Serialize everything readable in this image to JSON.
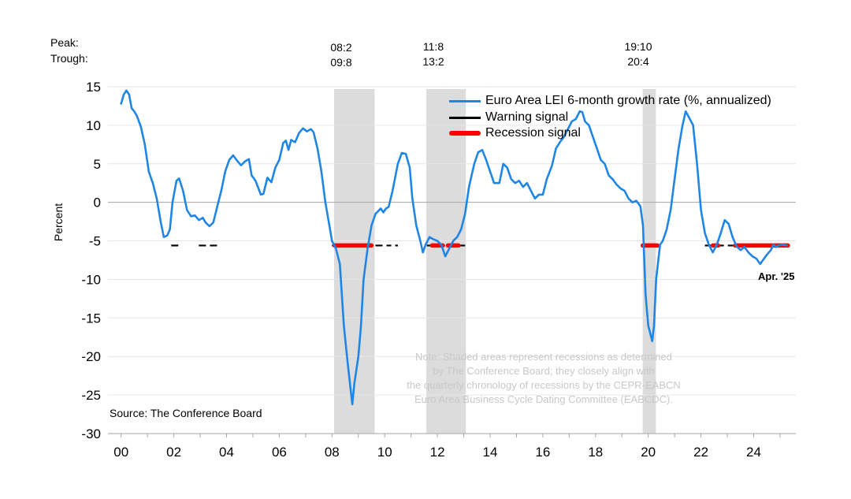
{
  "header": {
    "peak_label": "Peak:",
    "trough_label": "Trough:"
  },
  "recession_dates": [
    {
      "peak": "08:2",
      "trough": "09:8"
    },
    {
      "peak": "11:8",
      "trough": "13:2"
    },
    {
      "peak": "19:10",
      "trough": "20:4"
    }
  ],
  "legend": [
    {
      "label": "Euro Area LEI 6-month growth rate (%, annualized)",
      "color": "#1f86e6",
      "style": "line"
    },
    {
      "label": "Warning signal",
      "color": "#000000",
      "style": "dash"
    },
    {
      "label": "Recession signal",
      "color": "#ff0000",
      "style": "thick"
    }
  ],
  "note": [
    "Note: Shaded areas represent recessions as determined",
    "by The Conference Board; they closely align with",
    "the quarterly chronology of recessions by the CEPR-EABCN",
    "Euro Area Business Cycle Dating Committee (EABCDC)."
  ],
  "source": "Source: The Conference Board",
  "end_label": "Apr. '25",
  "chart_data": {
    "type": "line",
    "ylabel": "Percent",
    "ylim": [
      -30,
      15
    ],
    "yticks": [
      15,
      10,
      5,
      0,
      -5,
      -10,
      -15,
      -20,
      -25,
      -30
    ],
    "xlim": [
      1999.5,
      2025.6
    ],
    "xticks": [
      {
        "label": "00",
        "value": 2000
      },
      {
        "label": "02",
        "value": 2002
      },
      {
        "label": "04",
        "value": 2004
      },
      {
        "label": "06",
        "value": 2006
      },
      {
        "label": "08",
        "value": 2008
      },
      {
        "label": "10",
        "value": 2010
      },
      {
        "label": "12",
        "value": 2012
      },
      {
        "label": "14",
        "value": 2014
      },
      {
        "label": "16",
        "value": 2016
      },
      {
        "label": "18",
        "value": 2018
      },
      {
        "label": "20",
        "value": 2020
      },
      {
        "label": "22",
        "value": 2022
      },
      {
        "label": "24",
        "value": 2024
      }
    ],
    "recessions": [
      [
        2008.08,
        2009.62
      ],
      [
        2011.58,
        2013.08
      ],
      [
        2019.79,
        2020.29
      ]
    ],
    "signal_level": -5.6,
    "warning_segments": [
      [
        2001.9,
        2002.2
      ],
      [
        2002.95,
        2003.7
      ],
      [
        2008.0,
        2009.5
      ],
      [
        2009.65,
        2010.25
      ],
      [
        2010.4,
        2010.5
      ],
      [
        2011.6,
        2013.05
      ],
      [
        2019.79,
        2020.35
      ],
      [
        2022.15,
        2022.5
      ],
      [
        2022.6,
        2023.25
      ],
      [
        2023.3,
        2025.3
      ]
    ],
    "recession_segments": [
      [
        2008.1,
        2009.5
      ],
      [
        2011.8,
        2012.2
      ],
      [
        2012.4,
        2012.8
      ],
      [
        2019.79,
        2020.35
      ],
      [
        2022.45,
        2022.65
      ],
      [
        2023.3,
        2025.3
      ]
    ],
    "series": [
      {
        "name": "Euro Area LEI 6-month growth rate (%, annualized)",
        "points": [
          [
            2000.0,
            12.8
          ],
          [
            2000.1,
            14.0
          ],
          [
            2000.2,
            14.5
          ],
          [
            2000.3,
            14.0
          ],
          [
            2000.4,
            12.2
          ],
          [
            2000.5,
            11.8
          ],
          [
            2000.6,
            11.2
          ],
          [
            2000.75,
            9.8
          ],
          [
            2000.9,
            7.5
          ],
          [
            2001.05,
            4.0
          ],
          [
            2001.2,
            2.5
          ],
          [
            2001.35,
            0.5
          ],
          [
            2001.5,
            -2.5
          ],
          [
            2001.62,
            -4.5
          ],
          [
            2001.75,
            -4.3
          ],
          [
            2001.85,
            -3.5
          ],
          [
            2001.95,
            0.0
          ],
          [
            2002.1,
            2.8
          ],
          [
            2002.2,
            3.1
          ],
          [
            2002.35,
            1.5
          ],
          [
            2002.5,
            -1.0
          ],
          [
            2002.65,
            -1.8
          ],
          [
            2002.8,
            -1.7
          ],
          [
            2002.95,
            -2.3
          ],
          [
            2003.1,
            -2.0
          ],
          [
            2003.2,
            -2.6
          ],
          [
            2003.35,
            -3.1
          ],
          [
            2003.5,
            -2.6
          ],
          [
            2003.65,
            -0.5
          ],
          [
            2003.8,
            1.5
          ],
          [
            2003.95,
            4.0
          ],
          [
            2004.1,
            5.5
          ],
          [
            2004.25,
            6.1
          ],
          [
            2004.4,
            5.4
          ],
          [
            2004.55,
            4.8
          ],
          [
            2004.7,
            5.3
          ],
          [
            2004.85,
            5.6
          ],
          [
            2004.95,
            3.5
          ],
          [
            2005.1,
            2.8
          ],
          [
            2005.3,
            1.0
          ],
          [
            2005.4,
            1.1
          ],
          [
            2005.55,
            3.2
          ],
          [
            2005.7,
            2.6
          ],
          [
            2005.85,
            4.5
          ],
          [
            2006.0,
            5.5
          ],
          [
            2006.15,
            7.7
          ],
          [
            2006.25,
            8.0
          ],
          [
            2006.35,
            6.8
          ],
          [
            2006.45,
            8.1
          ],
          [
            2006.6,
            7.8
          ],
          [
            2006.75,
            9.0
          ],
          [
            2006.9,
            9.6
          ],
          [
            2007.05,
            9.2
          ],
          [
            2007.2,
            9.5
          ],
          [
            2007.3,
            9.1
          ],
          [
            2007.45,
            7.0
          ],
          [
            2007.6,
            4.0
          ],
          [
            2007.75,
            0.0
          ],
          [
            2007.9,
            -3.0
          ],
          [
            2008.0,
            -5.0
          ],
          [
            2008.15,
            -6.0
          ],
          [
            2008.3,
            -8.0
          ],
          [
            2008.45,
            -16.0
          ],
          [
            2008.6,
            -21.0
          ],
          [
            2008.7,
            -24.0
          ],
          [
            2008.77,
            -26.2
          ],
          [
            2008.85,
            -23.5
          ],
          [
            2009.0,
            -20.0
          ],
          [
            2009.1,
            -16.0
          ],
          [
            2009.2,
            -10.0
          ],
          [
            2009.35,
            -6.0
          ],
          [
            2009.5,
            -3.0
          ],
          [
            2009.65,
            -1.5
          ],
          [
            2009.85,
            -0.8
          ],
          [
            2009.95,
            -1.3
          ],
          [
            2010.05,
            -0.8
          ],
          [
            2010.15,
            -0.6
          ],
          [
            2010.3,
            1.5
          ],
          [
            2010.5,
            5.0
          ],
          [
            2010.65,
            6.4
          ],
          [
            2010.8,
            6.3
          ],
          [
            2010.95,
            4.5
          ],
          [
            2011.05,
            0.5
          ],
          [
            2011.2,
            -3.0
          ],
          [
            2011.35,
            -5.0
          ],
          [
            2011.45,
            -6.5
          ],
          [
            2011.55,
            -5.5
          ],
          [
            2011.7,
            -4.5
          ],
          [
            2011.85,
            -4.8
          ],
          [
            2012.0,
            -5.0
          ],
          [
            2012.15,
            -5.5
          ],
          [
            2012.3,
            -7.0
          ],
          [
            2012.45,
            -6.0
          ],
          [
            2012.6,
            -5.0
          ],
          [
            2012.75,
            -4.5
          ],
          [
            2012.9,
            -3.5
          ],
          [
            2013.05,
            -1.5
          ],
          [
            2013.2,
            2.0
          ],
          [
            2013.4,
            5.0
          ],
          [
            2013.55,
            6.5
          ],
          [
            2013.7,
            6.8
          ],
          [
            2013.85,
            5.5
          ],
          [
            2014.0,
            4.0
          ],
          [
            2014.15,
            2.5
          ],
          [
            2014.35,
            2.5
          ],
          [
            2014.5,
            5.0
          ],
          [
            2014.65,
            4.5
          ],
          [
            2014.8,
            3.0
          ],
          [
            2014.95,
            2.5
          ],
          [
            2015.1,
            2.8
          ],
          [
            2015.25,
            2.0
          ],
          [
            2015.4,
            2.5
          ],
          [
            2015.55,
            1.5
          ],
          [
            2015.7,
            0.5
          ],
          [
            2015.85,
            1.0
          ],
          [
            2016.0,
            1.0
          ],
          [
            2016.15,
            3.0
          ],
          [
            2016.35,
            4.8
          ],
          [
            2016.5,
            7.0
          ],
          [
            2016.65,
            7.8
          ],
          [
            2016.8,
            8.5
          ],
          [
            2016.95,
            9.5
          ],
          [
            2017.1,
            10.5
          ],
          [
            2017.25,
            10.8
          ],
          [
            2017.4,
            11.8
          ],
          [
            2017.5,
            11.7
          ],
          [
            2017.6,
            10.5
          ],
          [
            2017.75,
            10.0
          ],
          [
            2017.9,
            8.5
          ],
          [
            2018.05,
            7.0
          ],
          [
            2018.2,
            5.5
          ],
          [
            2018.35,
            5.0
          ],
          [
            2018.5,
            3.5
          ],
          [
            2018.65,
            3.0
          ],
          [
            2018.8,
            2.3
          ],
          [
            2018.95,
            1.8
          ],
          [
            2019.1,
            1.5
          ],
          [
            2019.25,
            0.5
          ],
          [
            2019.4,
            0.0
          ],
          [
            2019.55,
            0.2
          ],
          [
            2019.7,
            -0.5
          ],
          [
            2019.8,
            -3.0
          ],
          [
            2019.9,
            -12.0
          ],
          [
            2020.0,
            -16.0
          ],
          [
            2020.15,
            -18.0
          ],
          [
            2020.22,
            -16.0
          ],
          [
            2020.3,
            -10.0
          ],
          [
            2020.45,
            -5.5
          ],
          [
            2020.55,
            -5.0
          ],
          [
            2020.7,
            -3.5
          ],
          [
            2020.85,
            -1.0
          ],
          [
            2021.0,
            3.0
          ],
          [
            2021.15,
            7.0
          ],
          [
            2021.3,
            10.0
          ],
          [
            2021.42,
            11.8
          ],
          [
            2021.55,
            11.0
          ],
          [
            2021.7,
            10.0
          ],
          [
            2021.85,
            5.0
          ],
          [
            2022.0,
            -1.0
          ],
          [
            2022.15,
            -4.0
          ],
          [
            2022.3,
            -5.5
          ],
          [
            2022.45,
            -6.5
          ],
          [
            2022.6,
            -5.5
          ],
          [
            2022.75,
            -4.0
          ],
          [
            2022.9,
            -2.3
          ],
          [
            2023.05,
            -2.8
          ],
          [
            2023.2,
            -4.5
          ],
          [
            2023.35,
            -5.7
          ],
          [
            2023.5,
            -6.2
          ],
          [
            2023.65,
            -5.8
          ],
          [
            2023.8,
            -6.5
          ],
          [
            2023.95,
            -7.0
          ],
          [
            2024.1,
            -7.3
          ],
          [
            2024.25,
            -8.0
          ],
          [
            2024.35,
            -7.5
          ],
          [
            2024.5,
            -6.8
          ],
          [
            2024.65,
            -6.2
          ],
          [
            2024.75,
            -5.5
          ],
          [
            2024.85,
            -5.8
          ],
          [
            2024.95,
            -5.6
          ],
          [
            2025.1,
            -5.5
          ],
          [
            2025.25,
            -5.6
          ]
        ]
      }
    ]
  }
}
